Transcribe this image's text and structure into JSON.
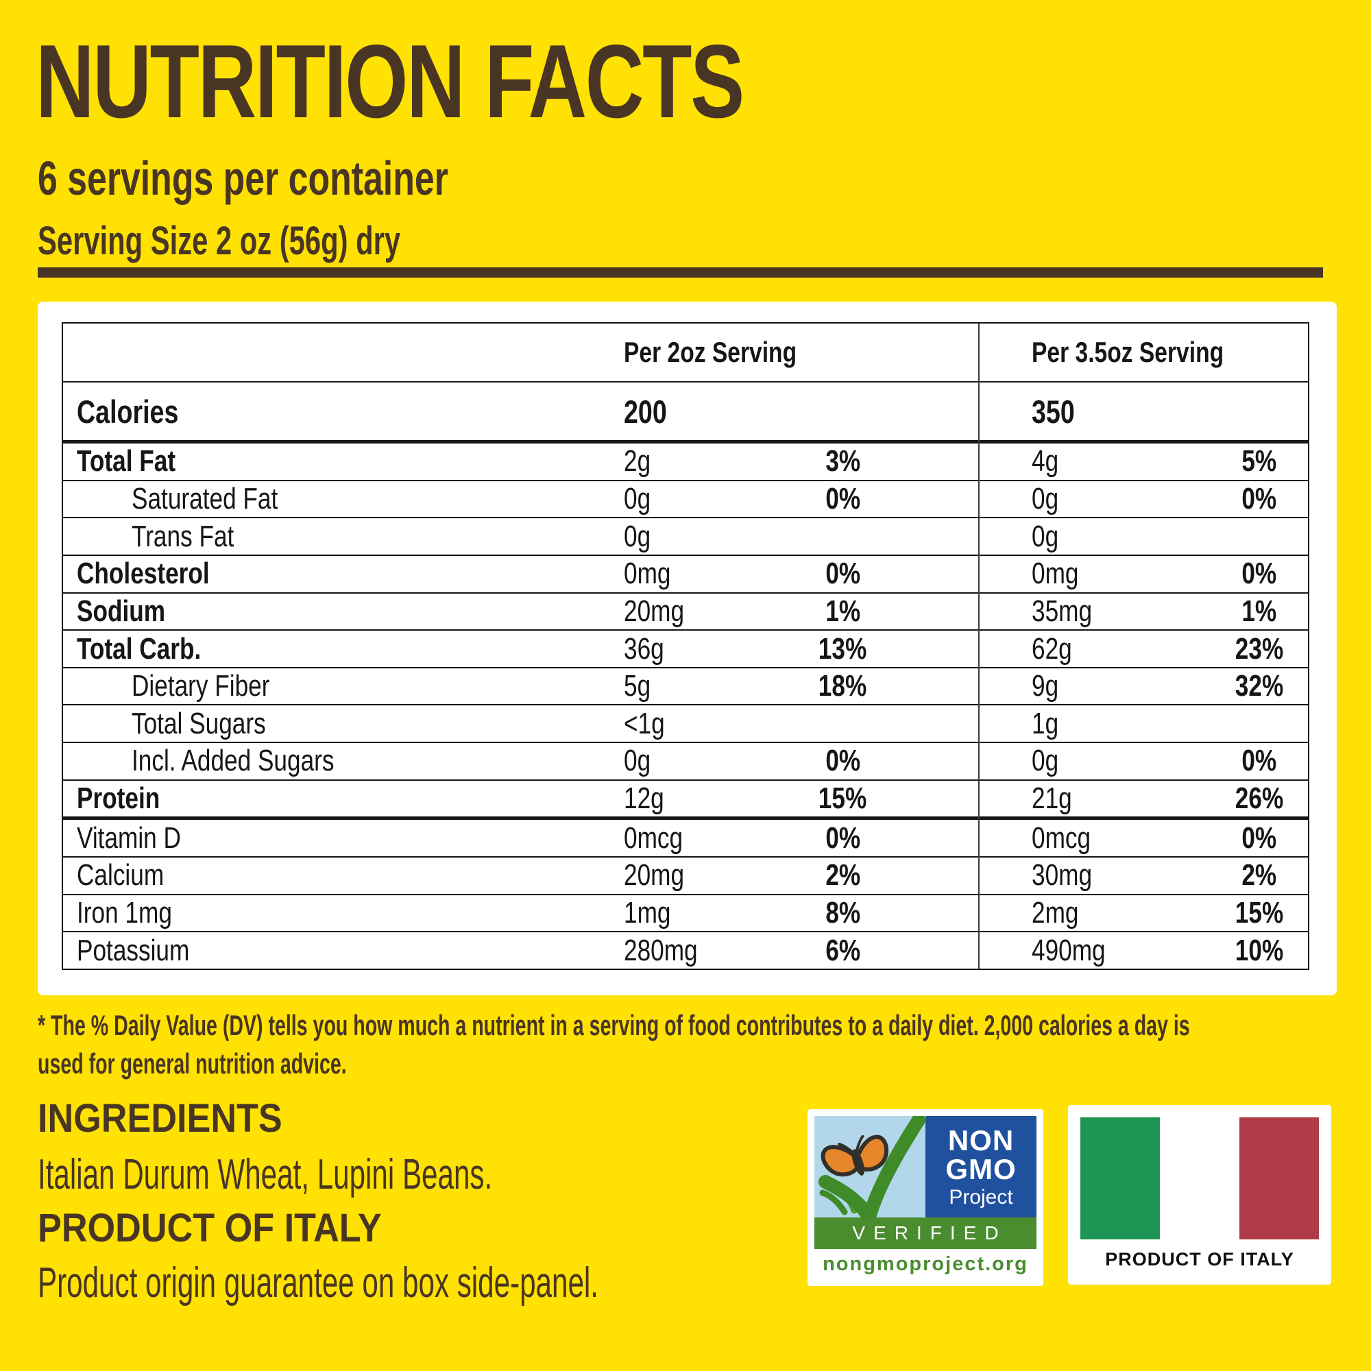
{
  "title": "NUTRITION FACTS",
  "servings_line": "6 servings per container",
  "serving_size_line": "Serving Size 2 oz (56g) dry",
  "table": {
    "col_headers": [
      "Per 2oz Serving",
      "Per 3.5oz Serving"
    ],
    "rows": [
      {
        "label": "Calories",
        "bold": true,
        "calories": true,
        "section_end": true,
        "a1": "200",
        "dv1": "",
        "a2": "350",
        "dv2": ""
      },
      {
        "label": "Total Fat",
        "bold": true,
        "indent": false,
        "a1": "2g",
        "dv1": "3%",
        "a2": "4g",
        "dv2": "5%"
      },
      {
        "label": "Saturated Fat",
        "bold": false,
        "indent": true,
        "a1": "0g",
        "dv1": "0%",
        "a2": "0g",
        "dv2": "0%"
      },
      {
        "label": "Trans Fat",
        "bold": false,
        "indent": true,
        "a1": "0g",
        "dv1": "",
        "a2": "0g",
        "dv2": ""
      },
      {
        "label": "Cholesterol",
        "bold": true,
        "indent": false,
        "a1": "0mg",
        "dv1": "0%",
        "a2": "0mg",
        "dv2": "0%"
      },
      {
        "label": "Sodium",
        "bold": true,
        "indent": false,
        "a1": "20mg",
        "dv1": "1%",
        "a2": "35mg",
        "dv2": "1%"
      },
      {
        "label": "Total Carb.",
        "bold": true,
        "indent": false,
        "a1": "36g",
        "dv1": "13%",
        "a2": "62g",
        "dv2": "23%"
      },
      {
        "label": "Dietary Fiber",
        "bold": false,
        "indent": true,
        "a1": "5g",
        "dv1": "18%",
        "a2": "9g",
        "dv2": "32%"
      },
      {
        "label": "Total Sugars",
        "bold": false,
        "indent": true,
        "a1": "<1g",
        "dv1": "",
        "a2": "1g",
        "dv2": ""
      },
      {
        "label": "Incl. Added Sugars",
        "bold": false,
        "indent": true,
        "a1": "0g",
        "dv1": "0%",
        "a2": "0g",
        "dv2": "0%"
      },
      {
        "label": "Protein",
        "bold": true,
        "indent": false,
        "section_end": true,
        "a1": "12g",
        "dv1": "15%",
        "a2": "21g",
        "dv2": "26%"
      },
      {
        "label": "Vitamin D",
        "bold": false,
        "indent": false,
        "a1": "0mcg",
        "dv1": "0%",
        "a2": "0mcg",
        "dv2": "0%"
      },
      {
        "label": "Calcium",
        "bold": false,
        "indent": false,
        "a1": "20mg",
        "dv1": "2%",
        "a2": "30mg",
        "dv2": "2%"
      },
      {
        "label": "Iron 1mg",
        "bold": false,
        "indent": false,
        "a1": "1mg",
        "dv1": "8%",
        "a2": "2mg",
        "dv2": "15%"
      },
      {
        "label": "Potassium",
        "bold": false,
        "indent": false,
        "a1": "280mg",
        "dv1": "6%",
        "a2": "490mg",
        "dv2": "10%"
      }
    ]
  },
  "footnote": {
    "line1": "* The % Daily Value (DV) tells you how much a nutrient in a serving of food contributes to a daily diet. 2,000 calories a day is",
    "line2": "used for general nutrition advice."
  },
  "ingredients": {
    "heading": "INGREDIENTS",
    "text": "Italian Durum Wheat, Lupini Beans."
  },
  "origin": {
    "heading": "PRODUCT OF ITALY",
    "text": "Product origin guarantee on box side-panel."
  },
  "badges": {
    "non_gmo": {
      "line1": "NON",
      "line2": "GMO",
      "line3": "Project",
      "verified": "VERIFIED",
      "url": "nongmoproject.org"
    },
    "italy": {
      "caption": "PRODUCT OF ITALY"
    }
  },
  "colors": {
    "background": "#FFE103",
    "brown_text": "#493524",
    "table_text": "#161616",
    "gmo_blue": "#20519f",
    "gmo_sky": "#b3d7ea",
    "gmo_green": "#4a8d2f",
    "butterfly_orange": "#e8862c",
    "flag_green": "#1d9454",
    "flag_red": "#b03b48"
  }
}
